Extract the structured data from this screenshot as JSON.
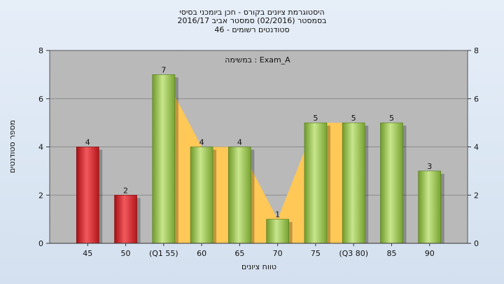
{
  "chart_data": {
    "type": "bar",
    "title_lines": [
      "היסטוגרמת ציונים בקורס - חכן ביומכני בסיסי",
      "בסמסטר  (02/2016)  סמסטר אביב 2016/17",
      "סטודנטים רשומים - 46"
    ],
    "xlabel": "טווח ציונים",
    "ylabel": "מספר סטודנטים",
    "annotation": "במשימה : Exam_A",
    "categories": [
      "45",
      "50",
      "(Q1 55)",
      "60",
      "65",
      "70",
      "75",
      "(Q3 80)",
      "85",
      "90"
    ],
    "values": [
      4,
      2,
      7,
      4,
      4,
      1,
      5,
      5,
      5,
      3
    ],
    "value_labels": [
      "4",
      "2",
      "7",
      "4",
      "4",
      "1",
      "5",
      "5",
      "5",
      "3"
    ],
    "ylim": [
      0,
      8
    ],
    "yticks": [
      0,
      2,
      4,
      6,
      8
    ],
    "ytick_labels": [
      "0",
      "2",
      "4",
      "6",
      "8"
    ],
    "grid": true,
    "colors": {
      "below_pass": "#e0262b",
      "pass": "#9fcd4e",
      "area": "#ffc857",
      "plot_bg": "#b9b9b9"
    },
    "below_pass_count": 2,
    "area_range": [
      2,
      7
    ]
  }
}
